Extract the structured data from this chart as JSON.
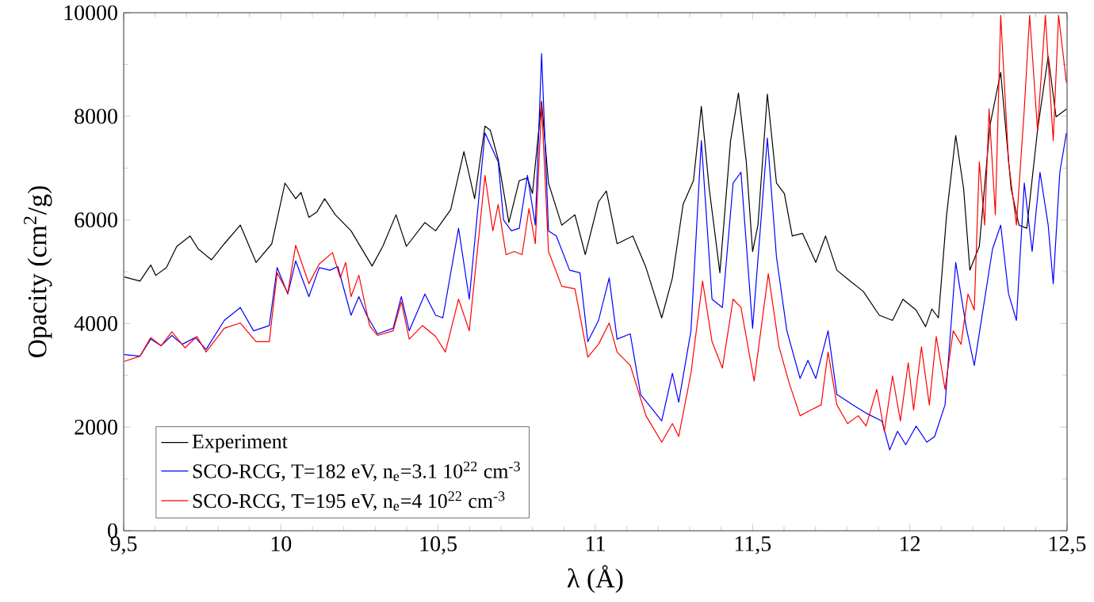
{
  "chart_data": {
    "type": "line",
    "xlabel": "λ (Å)",
    "ylabel": "Opacity (cm$^{2}$/g)",
    "xlim": [
      9.5,
      12.5
    ],
    "ylim": [
      0,
      10000
    ],
    "xticks": [
      {
        "value": 9.5,
        "label": "9,5"
      },
      10,
      {
        "value": 10.5,
        "label": "10,5"
      },
      11,
      {
        "value": 11.5,
        "label": "11,5"
      },
      12,
      {
        "value": 12.5,
        "label": "12,5"
      }
    ],
    "yticks": [
      0,
      2000,
      4000,
      6000,
      8000,
      10000
    ],
    "legend": "bottom left",
    "series": [
      {
        "name": "Experiment",
        "color": "#000000",
        "x": [
          9.502,
          9.552,
          9.586,
          9.602,
          9.636,
          9.669,
          9.711,
          9.737,
          9.779,
          9.82,
          9.871,
          9.921,
          9.971,
          10.013,
          10.047,
          10.064,
          10.089,
          10.114,
          10.139,
          10.173,
          10.223,
          10.29,
          10.324,
          10.366,
          10.399,
          10.458,
          10.492,
          10.54,
          10.582,
          10.616,
          10.649,
          10.666,
          10.691,
          10.725,
          10.758,
          10.784,
          10.8,
          10.829,
          10.851,
          10.893,
          10.935,
          10.968,
          11.01,
          11.035,
          11.069,
          11.119,
          11.161,
          11.211,
          11.245,
          11.279,
          11.312,
          11.337,
          11.362,
          11.396,
          11.43,
          11.455,
          11.48,
          11.5,
          11.517,
          11.547,
          11.576,
          11.601,
          11.626,
          11.659,
          11.701,
          11.732,
          11.768,
          11.81,
          11.852,
          11.903,
          11.945,
          11.978,
          12.02,
          12.05,
          12.07,
          12.091,
          12.117,
          12.146,
          12.171,
          12.191,
          12.221,
          12.255,
          12.289,
          12.322,
          12.347,
          12.372,
          12.406,
          12.44,
          12.465,
          12.498
        ],
        "values": [
          4900,
          4820,
          5130,
          4930,
          5080,
          5490,
          5690,
          5440,
          5230,
          5540,
          5900,
          5180,
          5540,
          6710,
          6410,
          6530,
          6050,
          6150,
          6410,
          6100,
          5790,
          5110,
          5490,
          6100,
          5490,
          5950,
          5790,
          6200,
          7320,
          6410,
          7810,
          7730,
          7170,
          5950,
          6760,
          6810,
          6510,
          8290,
          6710,
          5900,
          6100,
          5330,
          6350,
          6560,
          5540,
          5690,
          5080,
          4110,
          4880,
          6300,
          6760,
          8190,
          6610,
          4980,
          7530,
          8450,
          7120,
          5390,
          5900,
          8430,
          6710,
          6510,
          5690,
          5740,
          5180,
          5690,
          5030,
          4820,
          4620,
          4160,
          4060,
          4470,
          4260,
          3940,
          4280,
          4110,
          6100,
          7630,
          6610,
          5030,
          5490,
          7830,
          8850,
          6610,
          5900,
          5840,
          7730,
          9160,
          7990,
          8140
        ]
      },
      {
        "name": "SCO-RCG, T=182 eV, n$_{e}$=3.1 10$^{22}$ cm$^{-3}$",
        "color": "#0000ff",
        "x": [
          9.502,
          9.552,
          9.586,
          9.619,
          9.653,
          9.686,
          9.728,
          9.762,
          9.82,
          9.871,
          9.913,
          9.963,
          9.988,
          10.022,
          10.047,
          10.089,
          10.122,
          10.156,
          10.181,
          10.223,
          10.248,
          10.273,
          10.307,
          10.357,
          10.383,
          10.408,
          10.458,
          10.492,
          10.515,
          10.565,
          10.599,
          10.649,
          10.691,
          10.708,
          10.733,
          10.758,
          10.784,
          10.809,
          10.829,
          10.851,
          10.876,
          10.918,
          10.951,
          10.976,
          11.01,
          11.044,
          11.069,
          11.111,
          11.144,
          11.211,
          11.245,
          11.265,
          11.304,
          11.337,
          11.371,
          11.404,
          11.438,
          11.463,
          11.5,
          11.547,
          11.576,
          11.609,
          11.651,
          11.676,
          11.701,
          11.74,
          11.768,
          11.819,
          11.861,
          11.911,
          11.936,
          11.961,
          11.987,
          12.02,
          12.054,
          12.079,
          12.112,
          12.146,
          12.18,
          12.205,
          12.238,
          12.263,
          12.289,
          12.314,
          12.339,
          12.364,
          12.389,
          12.414,
          12.44,
          12.456,
          12.477,
          12.498
        ],
        "values": [
          3400,
          3370,
          3700,
          3570,
          3770,
          3600,
          3730,
          3500,
          4060,
          4310,
          3860,
          3960,
          5080,
          4570,
          5210,
          4520,
          5080,
          5030,
          5100,
          4160,
          4520,
          4160,
          3800,
          3910,
          4520,
          3860,
          4570,
          4160,
          4110,
          5840,
          4470,
          7680,
          7120,
          6000,
          5790,
          5840,
          6860,
          5900,
          9210,
          5790,
          5690,
          5030,
          4980,
          3650,
          4060,
          4880,
          3700,
          3800,
          2630,
          2120,
          3040,
          2480,
          3860,
          7530,
          4470,
          4310,
          6710,
          6920,
          3910,
          7580,
          5280,
          3860,
          2940,
          3290,
          2940,
          3860,
          2630,
          2430,
          2270,
          2120,
          1560,
          1920,
          1660,
          2020,
          1710,
          1820,
          2430,
          5180,
          3910,
          3190,
          4470,
          5440,
          5900,
          4570,
          4060,
          6710,
          5390,
          6920,
          5900,
          4770,
          6920,
          7680
        ]
      },
      {
        "name": "SCO-RCG, T=195 eV, n$_{e}$=4 10$^{22}$ cm$^{-3}$",
        "color": "#ff0000",
        "x": [
          9.502,
          9.552,
          9.586,
          9.619,
          9.653,
          9.695,
          9.733,
          9.762,
          9.82,
          9.871,
          9.921,
          9.963,
          9.988,
          10.022,
          10.047,
          10.089,
          10.122,
          10.164,
          10.189,
          10.206,
          10.223,
          10.248,
          10.282,
          10.307,
          10.357,
          10.383,
          10.408,
          10.45,
          10.492,
          10.523,
          10.565,
          10.599,
          10.649,
          10.674,
          10.691,
          10.716,
          10.742,
          10.767,
          10.789,
          10.809,
          10.829,
          10.851,
          10.893,
          10.935,
          10.976,
          11.01,
          11.044,
          11.069,
          11.111,
          11.161,
          11.211,
          11.245,
          11.265,
          11.304,
          11.341,
          11.371,
          11.404,
          11.438,
          11.463,
          11.505,
          11.55,
          11.584,
          11.617,
          11.651,
          11.685,
          11.718,
          11.74,
          11.768,
          11.802,
          11.836,
          11.861,
          11.895,
          11.919,
          11.945,
          11.97,
          11.995,
          12.012,
          12.037,
          12.062,
          12.084,
          12.112,
          12.138,
          12.163,
          12.185,
          12.205,
          12.221,
          12.238,
          12.252,
          12.272,
          12.289,
          12.314,
          12.339,
          12.364,
          12.381,
          12.406,
          12.431,
          12.456,
          12.473,
          12.498
        ],
        "values": [
          3270,
          3370,
          3730,
          3570,
          3840,
          3530,
          3750,
          3450,
          3910,
          4010,
          3650,
          3650,
          4980,
          4590,
          5510,
          4770,
          5150,
          5370,
          4880,
          5180,
          4520,
          4930,
          3960,
          3770,
          3860,
          4420,
          3700,
          3960,
          3750,
          3450,
          4470,
          3860,
          6860,
          5790,
          6300,
          5330,
          5390,
          5330,
          6220,
          5540,
          8240,
          5390,
          4720,
          4670,
          3350,
          3600,
          4010,
          3450,
          3190,
          2220,
          1710,
          2070,
          1820,
          3040,
          4820,
          3650,
          3140,
          4470,
          4310,
          2890,
          4960,
          3550,
          2840,
          2220,
          2330,
          2430,
          3450,
          2430,
          2070,
          2220,
          2020,
          2730,
          1920,
          2990,
          2120,
          3240,
          2330,
          3550,
          2430,
          3750,
          2730,
          3860,
          3600,
          4570,
          4260,
          7120,
          5900,
          8140,
          6100,
          9950,
          7120,
          5900,
          8140,
          9950,
          7730,
          9950,
          7530,
          9950,
          8650
        ]
      }
    ]
  }
}
